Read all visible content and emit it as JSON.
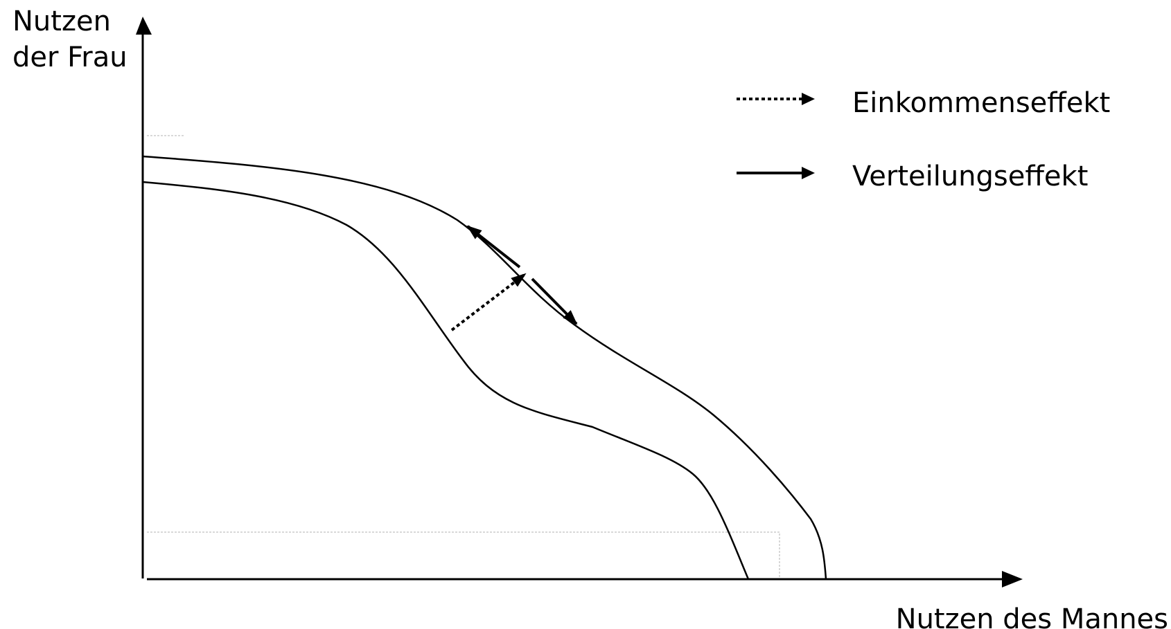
{
  "y_axis": {
    "label_line1": "Nutzen",
    "label_line2": "der Frau"
  },
  "x_axis": {
    "label": "Nutzen des Mannes"
  },
  "legend": {
    "items": [
      {
        "label": "Einkommenseffekt",
        "style": "dotted-arrow"
      },
      {
        "label": "Verteilungseffekt",
        "style": "solid-arrow"
      }
    ]
  },
  "colors": {
    "stroke": "#000000",
    "guide": "#b0b0b0",
    "background": "#ffffff"
  }
}
